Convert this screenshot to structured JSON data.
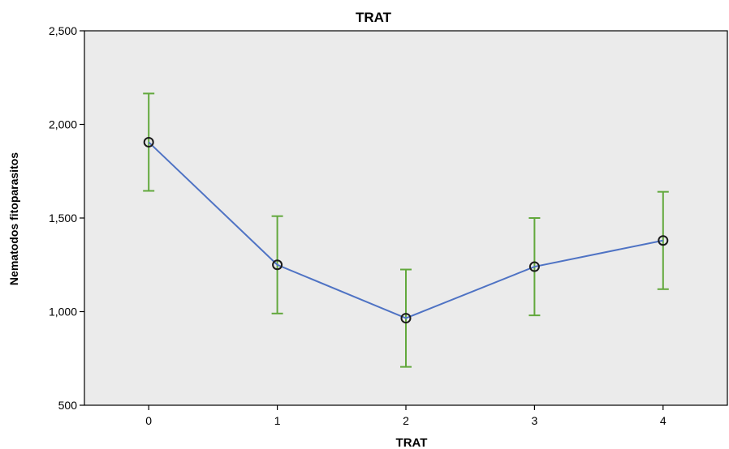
{
  "chart_data": {
    "type": "line",
    "title": "TRAT",
    "xlabel": "TRAT",
    "ylabel": "Nematodos fitoparasitos",
    "categories": [
      "0",
      "1",
      "2",
      "3",
      "4"
    ],
    "ylim": [
      500,
      2500
    ],
    "yticks": [
      500,
      1000,
      1500,
      2000,
      2500
    ],
    "ytick_labels": [
      "500",
      "1,000",
      "1,500",
      "2,000",
      "2,500"
    ],
    "series": [
      {
        "values": [
          1905,
          1250,
          965,
          1240,
          1380
        ],
        "error_low": [
          1645,
          990,
          705,
          980,
          1120
        ],
        "error_high": [
          2165,
          1510,
          1225,
          1500,
          1640
        ]
      }
    ],
    "grid": false,
    "colors": {
      "plot_background": "#ebebeb",
      "line": "#4f73c4",
      "error_bar": "#62a83c",
      "marker": "#1a1a1a"
    }
  }
}
